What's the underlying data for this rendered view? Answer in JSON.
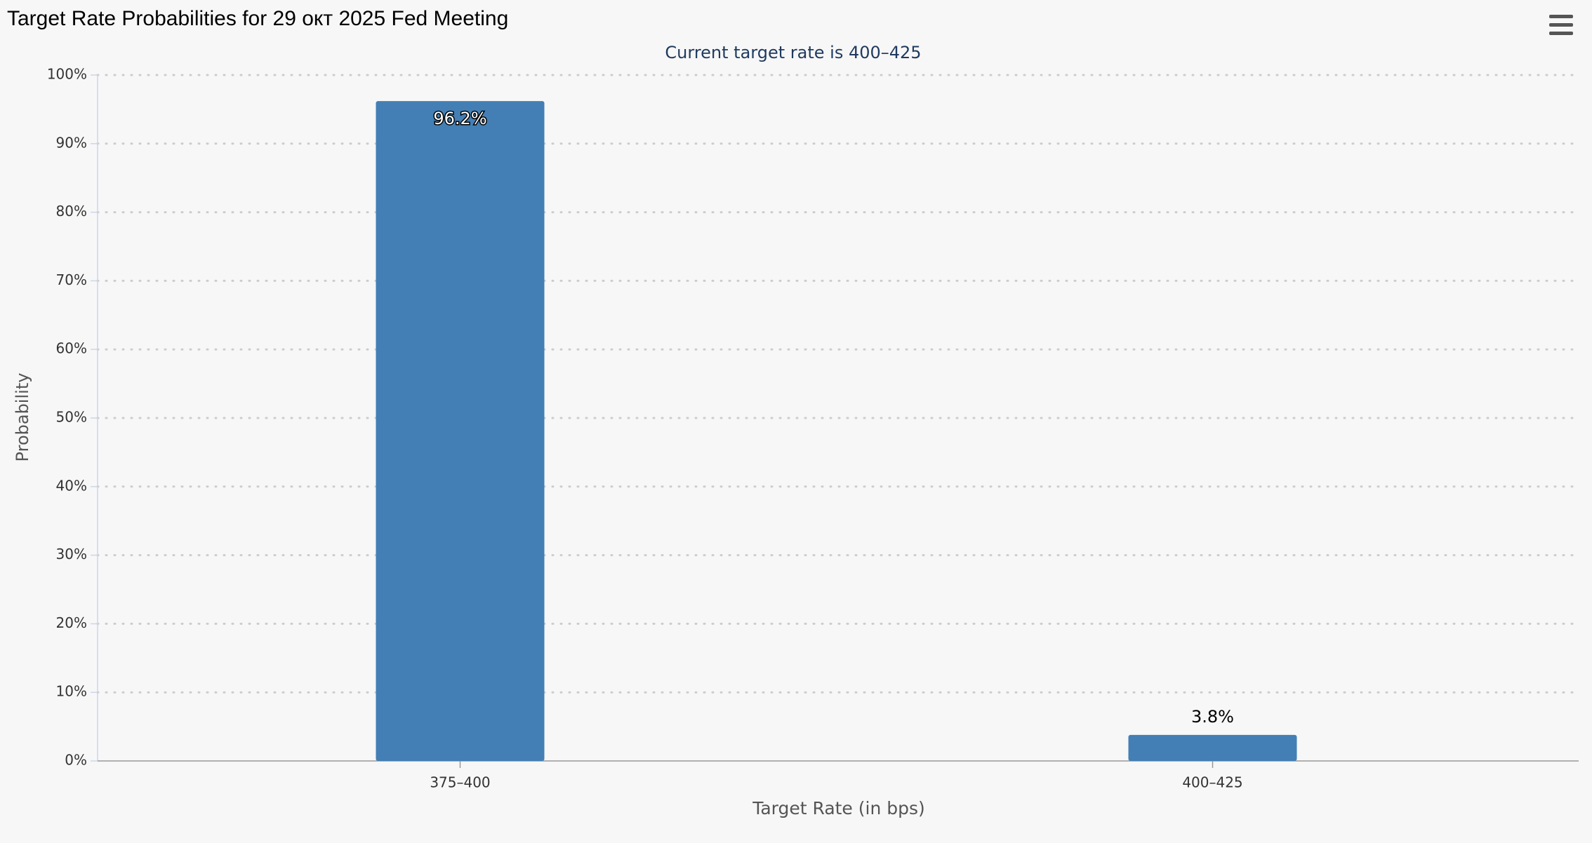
{
  "chart_data": {
    "type": "bar",
    "title": "Target Rate Probabilities for 29 окт 2025 Fed Meeting",
    "subtitle": "Current target rate is 400–425",
    "x_label": "Target Rate (in bps)",
    "y_label": "Probability",
    "categories": [
      "375–400",
      "400–425"
    ],
    "values": [
      96.2,
      3.8
    ],
    "value_labels": [
      "96.2%",
      "3.8%"
    ],
    "color": "#437fb5",
    "ylim": [
      0,
      100
    ],
    "yticks": [
      {
        "value": 0,
        "label": "0%"
      },
      {
        "value": 10,
        "label": "10%"
      },
      {
        "value": 20,
        "label": "20%"
      },
      {
        "value": 30,
        "label": "30%"
      },
      {
        "value": 40,
        "label": "40%"
      },
      {
        "value": 50,
        "label": "50%"
      },
      {
        "value": 60,
        "label": "60%"
      },
      {
        "value": 70,
        "label": "70%"
      },
      {
        "value": 80,
        "label": "80%"
      },
      {
        "value": 90,
        "label": "90%"
      },
      {
        "value": 100,
        "label": "100%"
      }
    ],
    "grid": true
  }
}
